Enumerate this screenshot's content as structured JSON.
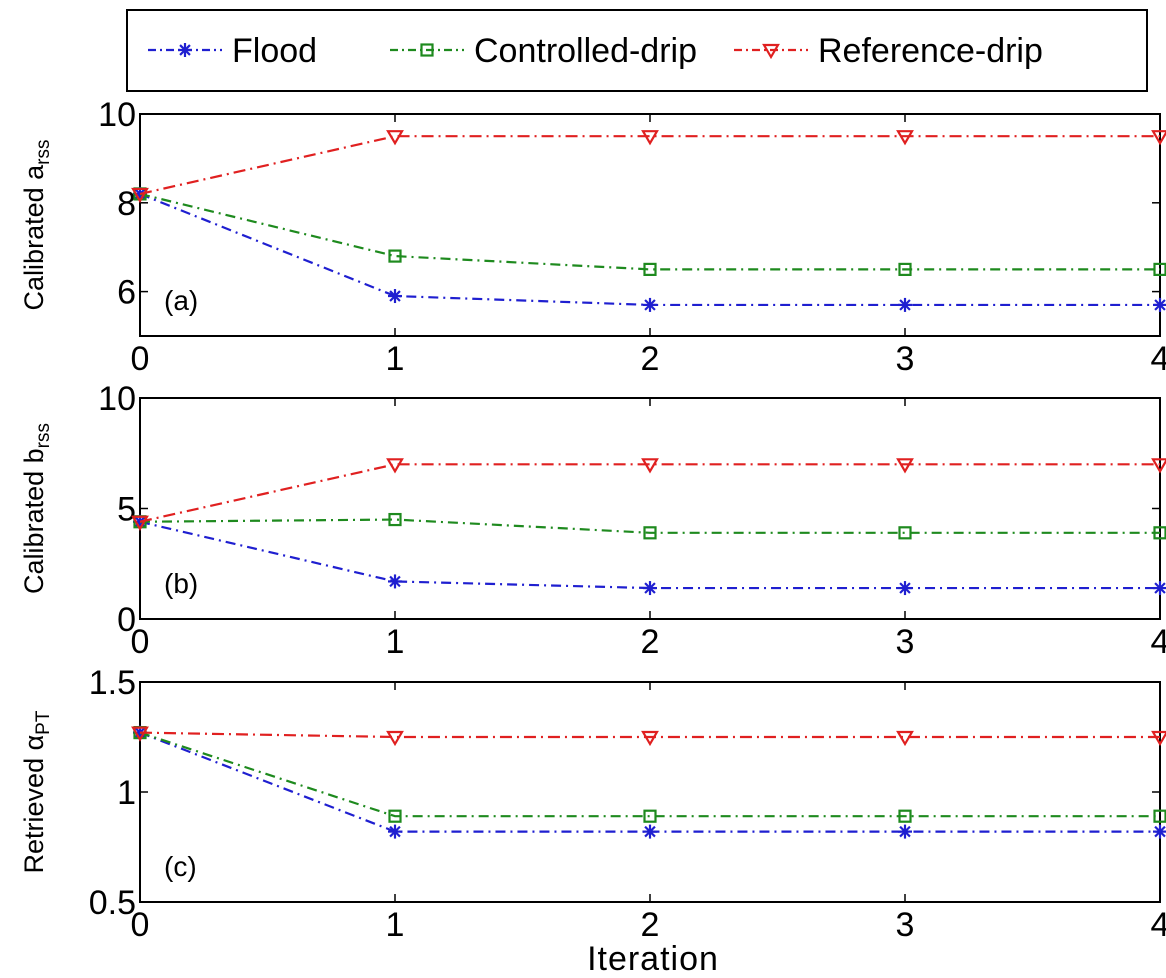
{
  "legend": {
    "entries": [
      {
        "label": "Flood",
        "color": "#1f1fd0",
        "marker": "asterisk"
      },
      {
        "label": "Controlled-drip",
        "color": "#1e8a1e",
        "marker": "square"
      },
      {
        "label": "Reference-drip",
        "color": "#e02020",
        "marker": "triangle-down"
      }
    ]
  },
  "xlabel": "Iteration",
  "chart_data": [
    {
      "type": "line",
      "panel_tag": "(a)",
      "ylabel_main": "Calibrated a",
      "ylabel_sub": "rss",
      "x": [
        0,
        1,
        2,
        3,
        4
      ],
      "xlim": [
        0,
        4
      ],
      "ylim": [
        5,
        10
      ],
      "yticks": [
        "6",
        "8",
        "10"
      ],
      "ytick_values": [
        6,
        8,
        10
      ],
      "xticks": [
        "0",
        "1",
        "2",
        "3",
        "4"
      ],
      "series": [
        {
          "name": "Flood",
          "values": [
            8.2,
            5.9,
            5.7,
            5.7,
            5.7
          ]
        },
        {
          "name": "Controlled-drip",
          "values": [
            8.2,
            6.8,
            6.5,
            6.5,
            6.5
          ]
        },
        {
          "name": "Reference-drip",
          "values": [
            8.2,
            9.5,
            9.5,
            9.5,
            9.5
          ]
        }
      ],
      "grid": false
    },
    {
      "type": "line",
      "panel_tag": "(b)",
      "ylabel_main": "Calibrated b",
      "ylabel_sub": "rss",
      "x": [
        0,
        1,
        2,
        3,
        4
      ],
      "xlim": [
        0,
        4
      ],
      "ylim": [
        0,
        10
      ],
      "yticks": [
        "0",
        "5",
        "10"
      ],
      "ytick_values": [
        0,
        5,
        10
      ],
      "xticks": [
        "0",
        "1",
        "2",
        "3",
        "4"
      ],
      "series": [
        {
          "name": "Flood",
          "values": [
            4.4,
            1.7,
            1.4,
            1.4,
            1.4
          ]
        },
        {
          "name": "Controlled-drip",
          "values": [
            4.4,
            4.5,
            3.9,
            3.9,
            3.9
          ]
        },
        {
          "name": "Reference-drip",
          "values": [
            4.4,
            7.0,
            7.0,
            7.0,
            7.0
          ]
        }
      ],
      "grid": false
    },
    {
      "type": "line",
      "panel_tag": "(c)",
      "ylabel_main": "Retrieved  α",
      "ylabel_sub": "PT",
      "x": [
        0,
        1,
        2,
        3,
        4
      ],
      "xlim": [
        0,
        4
      ],
      "ylim": [
        0.5,
        1.5
      ],
      "yticks": [
        "0.5",
        "1",
        "1.5"
      ],
      "ytick_values": [
        0.5,
        1,
        1.5
      ],
      "xticks": [
        "0",
        "1",
        "2",
        "3",
        "4"
      ],
      "series": [
        {
          "name": "Flood",
          "values": [
            1.27,
            0.82,
            0.82,
            0.82,
            0.82
          ]
        },
        {
          "name": "Controlled-drip",
          "values": [
            1.27,
            0.89,
            0.89,
            0.89,
            0.89
          ]
        },
        {
          "name": "Reference-drip",
          "values": [
            1.27,
            1.25,
            1.25,
            1.25,
            1.25
          ]
        }
      ],
      "grid": false
    }
  ]
}
